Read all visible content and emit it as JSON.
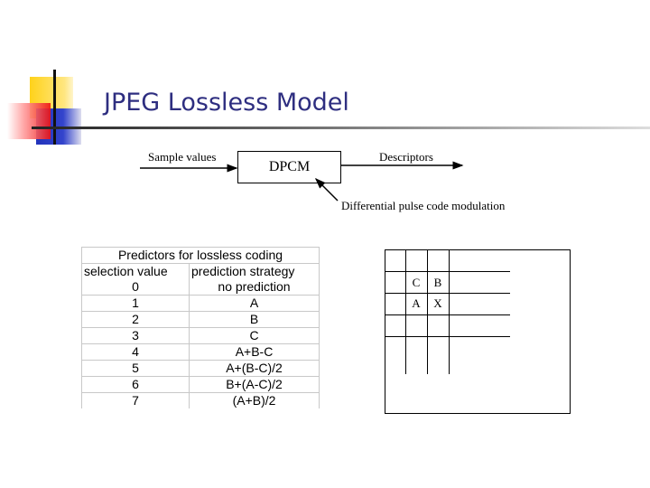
{
  "slide": {
    "title": "JPEG Lossless Model"
  },
  "diagram": {
    "input_label": "Sample values",
    "box_label": "DPCM",
    "output_label": "Descriptors",
    "annotation": "Differential pulse code modulation"
  },
  "table": {
    "title": "Predictors for lossless coding",
    "headers": [
      "selection value",
      "prediction strategy"
    ],
    "rows": [
      [
        "0",
        "no prediction"
      ],
      [
        "1",
        "A"
      ],
      [
        "2",
        "B"
      ],
      [
        "3",
        "C"
      ],
      [
        "4",
        "A+B-C"
      ],
      [
        "5",
        "A+(B-C)/2"
      ],
      [
        "6",
        "B+(A-C)/2"
      ],
      [
        "7",
        "(A+B)/2"
      ]
    ]
  },
  "pixel_grid": {
    "cells": [
      "C",
      "B",
      "A",
      "X"
    ]
  }
}
